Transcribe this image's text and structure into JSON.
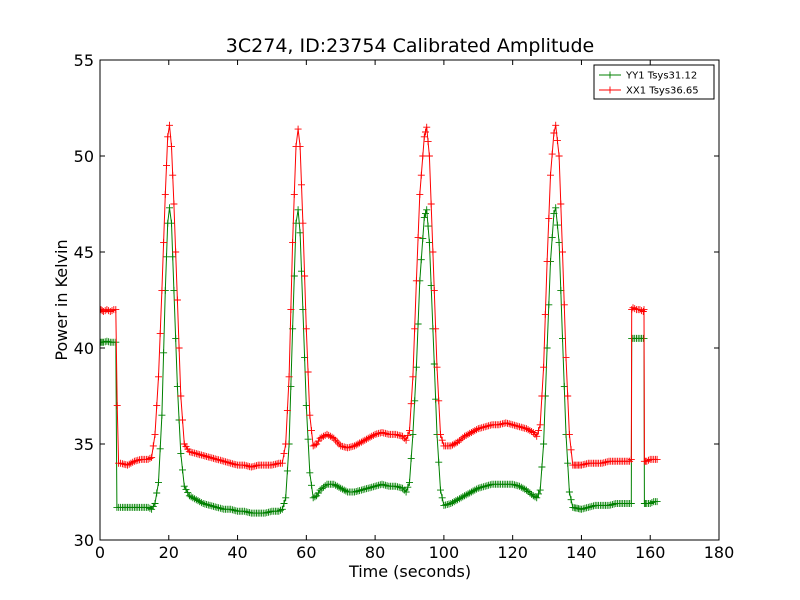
{
  "chart_data": {
    "type": "line",
    "title": "3C274, ID:23754 Calibrated Amplitude",
    "xlabel": "Time (seconds)",
    "ylabel": "Power in Kelvin",
    "xlim": [
      0,
      180
    ],
    "ylim": [
      30,
      55
    ],
    "xticks": [
      0,
      20,
      40,
      60,
      80,
      100,
      120,
      140,
      160,
      180
    ],
    "yticks": [
      30,
      35,
      40,
      45,
      50,
      55
    ],
    "grid": false,
    "legend_position": "top-right",
    "marker": "+",
    "series": [
      {
        "name": "YY1 Tsys31.12",
        "color": "#008000",
        "segments": [
          [
            [
              0.3,
              40.3
            ],
            [
              1,
              40.3
            ],
            [
              2,
              40.35
            ],
            [
              3,
              40.3
            ],
            [
              4,
              40.3
            ],
            [
              4.6,
              40.3
            ],
            [
              4.9,
              31.7
            ],
            [
              6,
              31.7
            ],
            [
              8,
              31.7
            ],
            [
              10,
              31.7
            ],
            [
              12,
              31.7
            ],
            [
              14,
              31.7
            ],
            [
              15,
              31.6
            ],
            [
              16,
              31.9
            ],
            [
              17,
              33.0
            ],
            [
              18,
              36.5
            ],
            [
              19,
              43.0
            ],
            [
              19.7,
              46.5
            ],
            [
              20.2,
              47.3
            ],
            [
              20.8,
              46.5
            ],
            [
              21.5,
              43.0
            ],
            [
              22.5,
              38.0
            ],
            [
              23.5,
              34.5
            ],
            [
              24.5,
              32.8
            ],
            [
              26,
              32.3
            ],
            [
              28,
              32.1
            ],
            [
              30,
              31.9
            ],
            [
              32,
              31.8
            ],
            [
              34,
              31.7
            ],
            [
              36,
              31.6
            ],
            [
              38,
              31.6
            ],
            [
              40,
              31.5
            ],
            [
              42,
              31.5
            ],
            [
              44,
              31.4
            ],
            [
              46,
              31.4
            ],
            [
              48,
              31.4
            ],
            [
              50,
              31.5
            ],
            [
              52,
              31.5
            ],
            [
              53,
              31.6
            ],
            [
              54,
              32.2
            ],
            [
              55,
              35.0
            ],
            [
              56,
              41.0
            ],
            [
              57,
              46.5
            ],
            [
              57.6,
              47.2
            ],
            [
              58.2,
              46.0
            ],
            [
              59,
              42.0
            ],
            [
              60,
              37.0
            ],
            [
              61,
              33.5
            ],
            [
              62,
              32.2
            ],
            [
              63,
              32.3
            ],
            [
              64,
              32.6
            ],
            [
              66,
              32.9
            ],
            [
              68,
              32.9
            ],
            [
              70,
              32.7
            ],
            [
              72,
              32.5
            ],
            [
              74,
              32.5
            ],
            [
              76,
              32.6
            ],
            [
              78,
              32.7
            ],
            [
              80,
              32.8
            ],
            [
              82,
              32.9
            ],
            [
              84,
              32.8
            ],
            [
              86,
              32.8
            ],
            [
              88,
              32.7
            ],
            [
              89,
              32.5
            ],
            [
              90,
              33.0
            ],
            [
              91,
              35.5
            ],
            [
              92,
              39.0
            ],
            [
              93,
              43.5
            ],
            [
              94.3,
              46.8
            ],
            [
              95,
              47.2
            ],
            [
              95.8,
              45.5
            ],
            [
              96.8,
              41.0
            ],
            [
              98,
              35.5
            ],
            [
              99,
              32.6
            ],
            [
              100,
              31.8
            ],
            [
              102,
              31.9
            ],
            [
              104,
              32.1
            ],
            [
              106,
              32.3
            ],
            [
              108,
              32.5
            ],
            [
              110,
              32.7
            ],
            [
              112,
              32.8
            ],
            [
              114,
              32.9
            ],
            [
              116,
              32.9
            ],
            [
              118,
              32.9
            ],
            [
              120,
              32.9
            ],
            [
              122,
              32.8
            ],
            [
              124,
              32.6
            ],
            [
              126,
              32.3
            ],
            [
              127,
              32.2
            ],
            [
              128,
              32.6
            ],
            [
              129,
              35.0
            ],
            [
              130,
              40.0
            ],
            [
              131,
              44.5
            ],
            [
              132,
              47.0
            ],
            [
              132.5,
              47.3
            ],
            [
              133.5,
              45.5
            ],
            [
              134.5,
              40.5
            ],
            [
              135.5,
              35.5
            ],
            [
              136.5,
              32.5
            ],
            [
              137.5,
              31.7
            ],
            [
              140,
              31.6
            ],
            [
              142,
              31.7
            ],
            [
              144,
              31.8
            ],
            [
              146,
              31.8
            ],
            [
              148,
              31.8
            ],
            [
              150,
              31.9
            ],
            [
              152,
              31.9
            ],
            [
              154,
              31.9
            ],
            [
              154.5,
              31.9
            ],
            [
              154.6,
              40.5
            ],
            [
              155,
              40.5
            ],
            [
              156,
              40.5
            ],
            [
              157,
              40.5
            ],
            [
              158,
              40.5
            ],
            [
              158.2,
              40.5
            ],
            [
              158.3,
              31.9
            ],
            [
              159,
              31.9
            ],
            [
              160,
              31.9
            ],
            [
              161,
              32.0
            ],
            [
              162,
              32.0
            ]
          ]
        ]
      },
      {
        "name": "XX1 Tsys36.65",
        "color": "#ff0000",
        "segments": [
          [
            [
              0.3,
              42.0
            ],
            [
              1,
              41.9
            ],
            [
              2,
              42.0
            ],
            [
              3,
              41.9
            ],
            [
              4,
              42.0
            ],
            [
              4.6,
              42.0
            ],
            [
              5,
              37.0
            ],
            [
              5.4,
              34.0
            ],
            [
              6,
              34.0
            ],
            [
              8,
              33.9
            ],
            [
              10,
              34.1
            ],
            [
              12,
              34.2
            ],
            [
              14,
              34.2
            ],
            [
              15,
              34.3
            ],
            [
              16,
              35.5
            ],
            [
              17,
              38.5
            ],
            [
              18,
              43.0
            ],
            [
              19,
              48.0
            ],
            [
              19.7,
              51.0
            ],
            [
              20.2,
              51.6
            ],
            [
              20.8,
              50.5
            ],
            [
              21.5,
              47.5
            ],
            [
              22.5,
              42.5
            ],
            [
              23.5,
              37.5
            ],
            [
              24.5,
              35.0
            ],
            [
              26,
              34.6
            ],
            [
              28,
              34.5
            ],
            [
              30,
              34.4
            ],
            [
              32,
              34.3
            ],
            [
              34,
              34.2
            ],
            [
              36,
              34.1
            ],
            [
              38,
              34.0
            ],
            [
              40,
              33.9
            ],
            [
              42,
              33.9
            ],
            [
              44,
              33.8
            ],
            [
              46,
              33.9
            ],
            [
              48,
              33.9
            ],
            [
              50,
              33.9
            ],
            [
              52,
              34.0
            ],
            [
              53,
              34.0
            ],
            [
              54,
              35.0
            ],
            [
              55,
              38.5
            ],
            [
              56,
              45.5
            ],
            [
              57,
              50.5
            ],
            [
              57.6,
              51.4
            ],
            [
              58.2,
              50.5
            ],
            [
              59,
              46.5
            ],
            [
              60,
              41.0
            ],
            [
              61,
              36.5
            ],
            [
              62,
              34.9
            ],
            [
              63,
              35.0
            ],
            [
              64,
              35.3
            ],
            [
              66,
              35.5
            ],
            [
              68,
              35.3
            ],
            [
              70,
              34.9
            ],
            [
              72,
              34.8
            ],
            [
              74,
              34.9
            ],
            [
              76,
              35.1
            ],
            [
              78,
              35.3
            ],
            [
              80,
              35.5
            ],
            [
              82,
              35.6
            ],
            [
              84,
              35.5
            ],
            [
              86,
              35.5
            ],
            [
              88,
              35.4
            ],
            [
              89,
              35.2
            ],
            [
              90,
              35.7
            ],
            [
              91,
              38.5
            ],
            [
              92,
              43.5
            ],
            [
              93,
              48.0
            ],
            [
              94.3,
              51.0
            ],
            [
              95,
              51.5
            ],
            [
              95.8,
              50.0
            ],
            [
              96.8,
              45.0
            ],
            [
              98,
              39.0
            ],
            [
              99,
              35.5
            ],
            [
              100,
              34.9
            ],
            [
              102,
              34.9
            ],
            [
              104,
              35.1
            ],
            [
              106,
              35.4
            ],
            [
              108,
              35.6
            ],
            [
              110,
              35.8
            ],
            [
              112,
              35.9
            ],
            [
              114,
              36.0
            ],
            [
              116,
              36.0
            ],
            [
              118,
              36.1
            ],
            [
              120,
              36.0
            ],
            [
              122,
              35.9
            ],
            [
              124,
              35.8
            ],
            [
              126,
              35.6
            ],
            [
              127,
              35.4
            ],
            [
              128,
              36.0
            ],
            [
              129,
              39.0
            ],
            [
              130,
              44.5
            ],
            [
              131,
              49.0
            ],
            [
              132,
              51.2
            ],
            [
              132.5,
              51.6
            ],
            [
              133.5,
              50.0
            ],
            [
              134.5,
              45.0
            ],
            [
              135.5,
              39.5
            ],
            [
              136.5,
              35.5
            ],
            [
              137.5,
              33.9
            ],
            [
              140,
              33.9
            ],
            [
              142,
              34.0
            ],
            [
              144,
              34.0
            ],
            [
              146,
              34.0
            ],
            [
              148,
              34.1
            ],
            [
              150,
              34.1
            ],
            [
              152,
              34.1
            ],
            [
              154,
              34.1
            ],
            [
              154.5,
              34.2
            ],
            [
              154.6,
              42.0
            ],
            [
              155,
              42.1
            ],
            [
              156,
              42.0
            ],
            [
              157,
              42.0
            ],
            [
              158,
              41.9
            ],
            [
              158.2,
              42.0
            ],
            [
              158.3,
              34.1
            ],
            [
              159,
              34.1
            ],
            [
              160,
              34.2
            ],
            [
              161,
              34.2
            ],
            [
              162,
              34.2
            ]
          ]
        ]
      }
    ]
  }
}
